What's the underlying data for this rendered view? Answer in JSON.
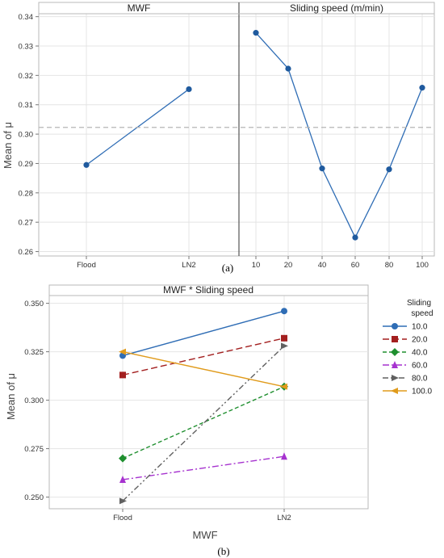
{
  "chart_data": [
    {
      "type": "line",
      "panels": [
        {
          "title": "MWF",
          "categories": [
            "Flood",
            "LN2"
          ],
          "values": [
            0.2895,
            0.3153
          ]
        },
        {
          "title": "Sliding speed (m/min)",
          "categories": [
            "10",
            "20",
            "40",
            "60",
            "80",
            "100"
          ],
          "values": [
            0.3345,
            0.3223,
            0.2883,
            0.2648,
            0.288,
            0.3158
          ]
        }
      ],
      "ylabel": "Mean of μ",
      "yticks": [
        "0.26",
        "0.27",
        "0.28",
        "0.29",
        "0.30",
        "0.31",
        "0.32",
        "0.33",
        "0.34"
      ],
      "ylim": [
        0.2585,
        0.341
      ],
      "reference_line": 0.3023,
      "grid": true,
      "color": "#2f6db5",
      "sublabel": "(a)"
    },
    {
      "type": "line",
      "title": "MWF * Sliding speed",
      "xlabel": "MWF",
      "ylabel": "Mean of μ",
      "categories": [
        "Flood",
        "LN2"
      ],
      "yticks": [
        "0.250",
        "0.275",
        "0.300",
        "0.325",
        "0.350"
      ],
      "ylim": [
        0.244,
        0.354
      ],
      "legend_title": [
        "Sliding",
        "speed"
      ],
      "legend_position": "right",
      "series": [
        {
          "name": "10.0",
          "values": [
            0.323,
            0.346
          ],
          "color": "#2f6db5",
          "marker": "circle",
          "dash": "solid"
        },
        {
          "name": "20.0",
          "values": [
            0.313,
            0.332
          ],
          "color": "#a31f1f",
          "marker": "square",
          "dash": "long-dash"
        },
        {
          "name": "40.0",
          "values": [
            0.27,
            0.307
          ],
          "color": "#1f8f2f",
          "marker": "diamond",
          "dash": "dash"
        },
        {
          "name": "60.0",
          "values": [
            0.259,
            0.271
          ],
          "color": "#a632cf",
          "marker": "triangle-up",
          "dash": "dash-dot"
        },
        {
          "name": "80.0",
          "values": [
            0.248,
            0.328
          ],
          "color": "#606060",
          "marker": "triangle-right",
          "dash": "dash-dot-dot"
        },
        {
          "name": "100.0",
          "values": [
            0.325,
            0.307
          ],
          "color": "#e09b1c",
          "marker": "triangle-left",
          "dash": "solid"
        }
      ],
      "grid": true,
      "sublabel": "(b)"
    }
  ]
}
